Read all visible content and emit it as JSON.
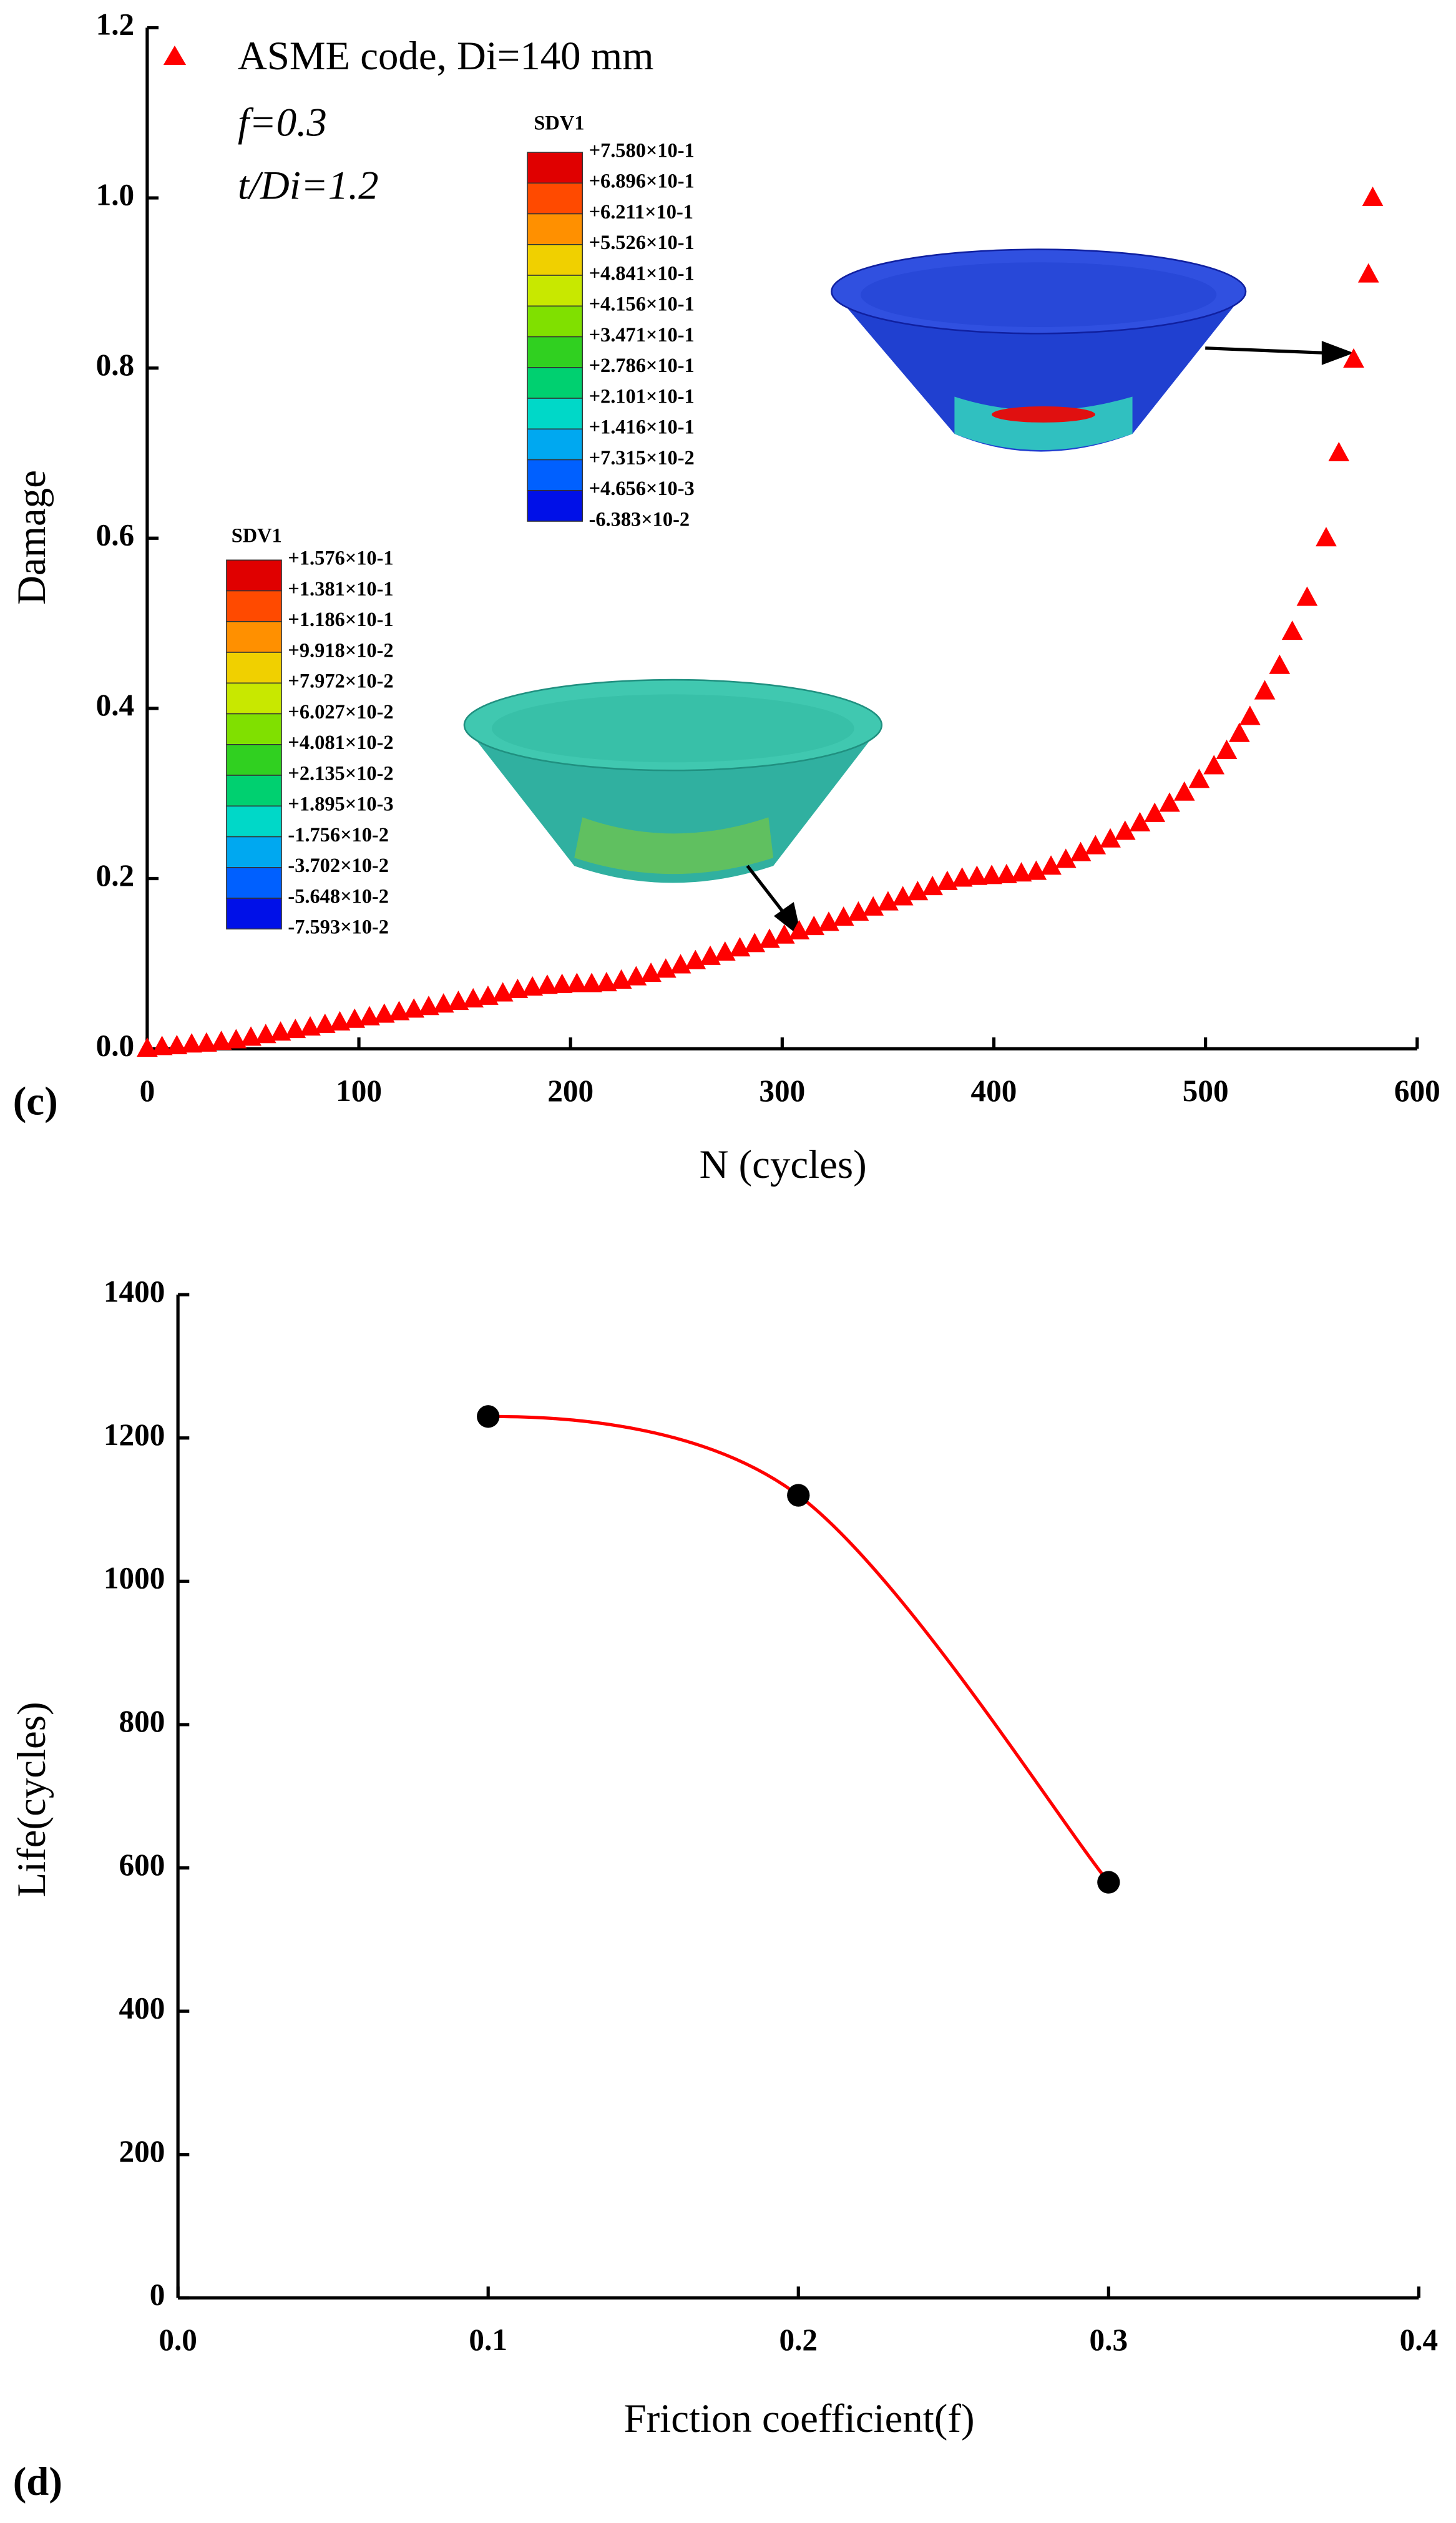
{
  "chart_data": [
    {
      "type": "scatter",
      "x": [
        0,
        7,
        14,
        21,
        28,
        35,
        42,
        49,
        56,
        63,
        70,
        77,
        84,
        91,
        98,
        105,
        112,
        119,
        126,
        133,
        140,
        147,
        154,
        161,
        168,
        175,
        182,
        189,
        196,
        203,
        210,
        217,
        224,
        231,
        238,
        245,
        252,
        259,
        266,
        273,
        280,
        287,
        294,
        301,
        308,
        315,
        322,
        329,
        336,
        343,
        350,
        357,
        364,
        371,
        378,
        385,
        392,
        399,
        406,
        413,
        420,
        427,
        434,
        441,
        448,
        455,
        462,
        469,
        476,
        483,
        490,
        497,
        504,
        510,
        516,
        521,
        528,
        535,
        541,
        548,
        557,
        563,
        570,
        577,
        579
      ],
      "series": [
        {
          "name": "ASME code, Di=140 mm",
          "color": "#ff0000",
          "values": [
            0,
            0.002,
            0.003,
            0.005,
            0.006,
            0.008,
            0.01,
            0.013,
            0.016,
            0.019,
            0.022,
            0.025,
            0.028,
            0.031,
            0.034,
            0.037,
            0.04,
            0.043,
            0.046,
            0.049,
            0.052,
            0.055,
            0.058,
            0.061,
            0.065,
            0.069,
            0.072,
            0.074,
            0.075,
            0.076,
            0.076,
            0.077,
            0.08,
            0.084,
            0.088,
            0.093,
            0.098,
            0.103,
            0.108,
            0.113,
            0.118,
            0.123,
            0.128,
            0.133,
            0.138,
            0.143,
            0.148,
            0.154,
            0.16,
            0.166,
            0.172,
            0.178,
            0.184,
            0.19,
            0.196,
            0.2,
            0.202,
            0.203,
            0.204,
            0.206,
            0.208,
            0.214,
            0.222,
            0.23,
            0.238,
            0.246,
            0.255,
            0.265,
            0.276,
            0.288,
            0.301,
            0.316,
            0.332,
            0.35,
            0.37,
            0.39,
            0.42,
            0.45,
            0.49,
            0.53,
            0.6,
            0.7,
            0.81,
            0.91,
            1.0
          ]
        }
      ],
      "xlabel": "N (cycles)",
      "ylabel": "Damage",
      "xlim": [
        0,
        600
      ],
      "xticks": [
        0,
        100,
        200,
        300,
        400,
        500,
        600
      ],
      "ylim": [
        0,
        1.2
      ],
      "yticks": [
        {
          "value": 0,
          "label": "0.0"
        },
        0.2,
        0.4,
        0.6,
        0.8,
        {
          "value": 1,
          "label": "1.0"
        },
        1.2
      ],
      "annotations": [
        "f=0.3",
        "t/Di=1.2"
      ],
      "panel_label": "(c)",
      "contour_legends": [
        {
          "title": "SDV1",
          "labels": [
            "+7.580×10-1",
            "+6.896×10-1",
            "+6.211×10-1",
            "+5.526×10-1",
            "+4.841×10-1",
            "+4.156×10-1",
            "+3.471×10-1",
            "+2.786×10-1",
            "+2.101×10-1",
            "+1.416×10-1",
            "+7.315×10-2",
            "+4.656×10-3",
            "-6.383×10-2"
          ]
        },
        {
          "title": "SDV1",
          "labels": [
            "+1.576×10-1",
            "+1.381×10-1",
            "+1.186×10-1",
            "+9.918×10-2",
            "+7.972×10-2",
            "+6.027×10-2",
            "+4.081×10-2",
            "+2.135×10-2",
            "+1.895×10-3",
            "-1.756×10-2",
            "-3.702×10-2",
            "-5.648×10-2",
            "-7.593×10-2"
          ]
        }
      ]
    },
    {
      "type": "line",
      "x": [
        0.1,
        0.2,
        0.3
      ],
      "series": [
        {
          "color": "#ff0000",
          "marker_color": "#000000",
          "values": [
            1230,
            1120,
            580
          ]
        }
      ],
      "xlabel": "Friction coefficient(f)",
      "ylabel": "Life(cycles)",
      "xlim": [
        0,
        0.4
      ],
      "xticks": [
        {
          "value": 0,
          "label": "0.0"
        },
        0.1,
        0.2,
        0.3,
        0.4
      ],
      "ylim": [
        0,
        1400
      ],
      "yticks": [
        0,
        200,
        400,
        600,
        800,
        1000,
        1200,
        1400
      ],
      "panel_label": "(d)"
    }
  ]
}
